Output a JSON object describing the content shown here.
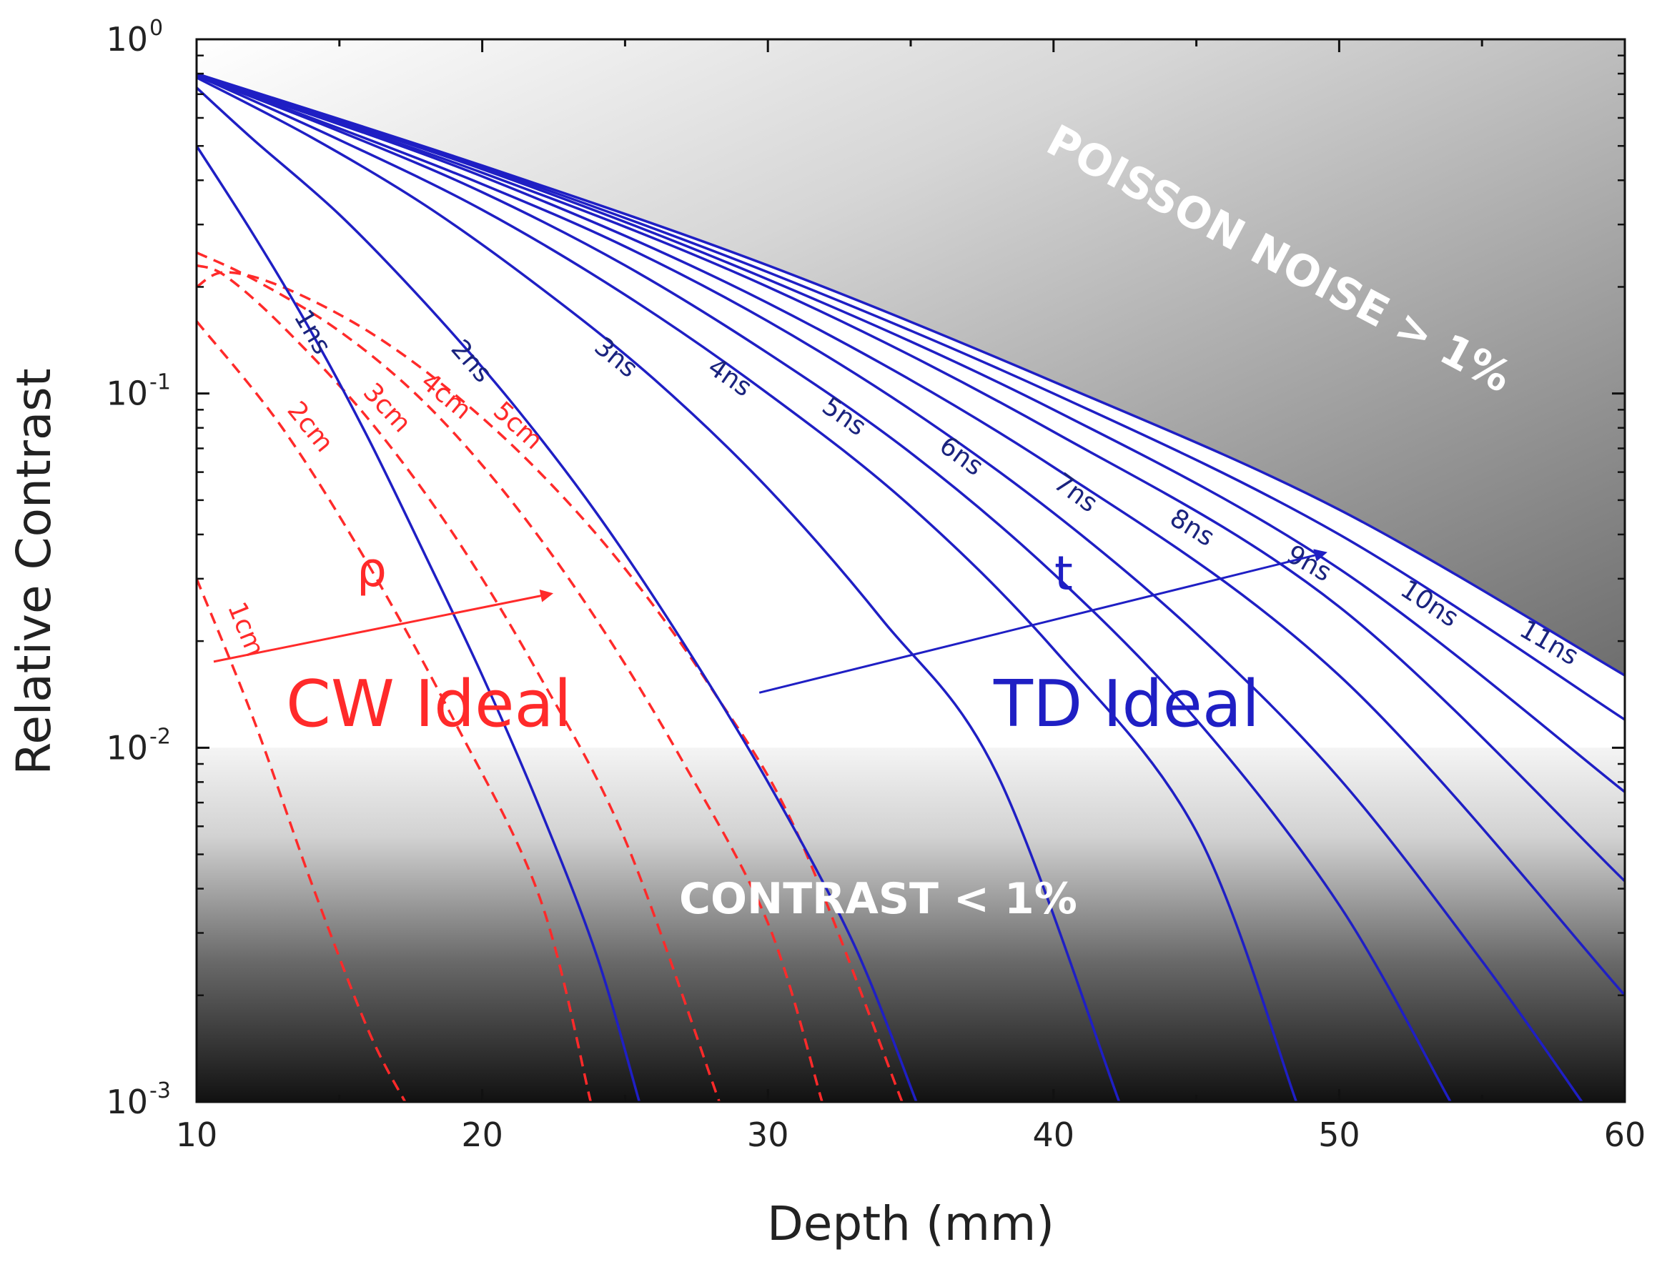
{
  "chart_data": {
    "type": "line",
    "xlabel": "Depth (mm)",
    "ylabel": "Relative Contrast",
    "xlim": [
      10,
      60
    ],
    "ylim": [
      0.001,
      1
    ],
    "yscale": "log",
    "x_ticks": [
      "10",
      "20",
      "30",
      "40",
      "50",
      "60"
    ],
    "y_ticks": [
      {
        "base": "10",
        "exp": "0",
        "value": 1
      },
      {
        "base": "10",
        "exp": "-1",
        "value": 0.1
      },
      {
        "base": "10",
        "exp": "-2",
        "value": 0.01
      },
      {
        "base": "10",
        "exp": "-3",
        "value": 0.001
      }
    ],
    "regions": {
      "poisson_label": "POISSON NOISE > 1%",
      "contrast_label": "CONTRAST < 1%",
      "contrast_threshold": 0.01
    },
    "annotations": {
      "cw_ideal": "CW Ideal",
      "td_ideal": "TD Ideal",
      "rho": "ρ",
      "t": "t"
    },
    "colors": {
      "td": "#1f1fc4",
      "td_label": "#1a237e",
      "cw": "#ff2a2a",
      "axis": "#111111"
    },
    "td_series": [
      {
        "name": "1ns",
        "label_x": 13.6,
        "points": [
          [
            10,
            0.5
          ],
          [
            12,
            0.28
          ],
          [
            14,
            0.15
          ],
          [
            16,
            0.075
          ],
          [
            18,
            0.035
          ],
          [
            20,
            0.016
          ],
          [
            22,
            0.0068
          ],
          [
            24,
            0.0026
          ],
          [
            25.5,
            0.001
          ]
        ]
      },
      {
        "name": "2ns",
        "label_x": 19.2,
        "points": [
          [
            10,
            0.73
          ],
          [
            12,
            0.52
          ],
          [
            15,
            0.32
          ],
          [
            18,
            0.18
          ],
          [
            21,
            0.095
          ],
          [
            24,
            0.046
          ],
          [
            27,
            0.02
          ],
          [
            30,
            0.008
          ],
          [
            33,
            0.0028
          ],
          [
            35.2,
            0.001
          ]
        ]
      },
      {
        "name": "3ns",
        "label_x": 24.3,
        "points": [
          [
            10,
            0.78
          ],
          [
            14,
            0.53
          ],
          [
            18,
            0.34
          ],
          [
            22,
            0.2
          ],
          [
            26,
            0.11
          ],
          [
            30,
            0.054
          ],
          [
            34,
            0.023
          ],
          [
            38,
            0.0085
          ],
          [
            42.3,
            0.001
          ]
        ]
      },
      {
        "name": "4ns",
        "label_x": 28.3,
        "points": [
          [
            10,
            0.79
          ],
          [
            15,
            0.52
          ],
          [
            20,
            0.33
          ],
          [
            25,
            0.19
          ],
          [
            30,
            0.1
          ],
          [
            35,
            0.048
          ],
          [
            40,
            0.019
          ],
          [
            45,
            0.0058
          ],
          [
            48.5,
            0.001
          ]
        ]
      },
      {
        "name": "5ns",
        "label_x": 32.3,
        "points": [
          [
            10,
            0.79
          ],
          [
            15,
            0.55
          ],
          [
            20,
            0.37
          ],
          [
            25,
            0.23
          ],
          [
            30,
            0.13
          ],
          [
            35,
            0.068
          ],
          [
            40,
            0.031
          ],
          [
            45,
            0.012
          ],
          [
            50,
            0.0036
          ],
          [
            53.9,
            0.001
          ]
        ]
      },
      {
        "name": "6ns",
        "label_x": 36.4,
        "points": [
          [
            10,
            0.79
          ],
          [
            15,
            0.56
          ],
          [
            20,
            0.39
          ],
          [
            25,
            0.26
          ],
          [
            30,
            0.16
          ],
          [
            35,
            0.09
          ],
          [
            40,
            0.046
          ],
          [
            45,
            0.021
          ],
          [
            50,
            0.0082
          ],
          [
            55,
            0.0025
          ],
          [
            58.5,
            0.001
          ]
        ]
      },
      {
        "name": "7ns",
        "label_x": 40.4,
        "points": [
          [
            10,
            0.79
          ],
          [
            20,
            0.41
          ],
          [
            30,
            0.18
          ],
          [
            40,
            0.062
          ],
          [
            50,
            0.016
          ],
          [
            60,
            0.002
          ]
        ]
      },
      {
        "name": "8ns",
        "label_x": 44.5,
        "points": [
          [
            10,
            0.79
          ],
          [
            20,
            0.42
          ],
          [
            30,
            0.2
          ],
          [
            40,
            0.078
          ],
          [
            50,
            0.025
          ],
          [
            60,
            0.0042
          ]
        ]
      },
      {
        "name": "9ns",
        "label_x": 48.6,
        "points": [
          [
            10,
            0.79
          ],
          [
            20,
            0.43
          ],
          [
            30,
            0.21
          ],
          [
            40,
            0.09
          ],
          [
            50,
            0.032
          ],
          [
            60,
            0.0075
          ]
        ]
      },
      {
        "name": "10ns",
        "label_x": 52.8,
        "points": [
          [
            10,
            0.79
          ],
          [
            20,
            0.435
          ],
          [
            30,
            0.22
          ],
          [
            40,
            0.1
          ],
          [
            50,
            0.04
          ],
          [
            60,
            0.012
          ]
        ]
      },
      {
        "name": "11ns",
        "label_x": 57.0,
        "points": [
          [
            10,
            0.8
          ],
          [
            20,
            0.44
          ],
          [
            30,
            0.23
          ],
          [
            40,
            0.108
          ],
          [
            50,
            0.047
          ],
          [
            60,
            0.016
          ]
        ]
      }
    ],
    "cw_series": [
      {
        "name": "1cm",
        "label_x": 10.7,
        "points": [
          [
            10,
            0.03
          ],
          [
            12,
            0.012
          ],
          [
            14,
            0.0042
          ],
          [
            16,
            0.0016
          ],
          [
            17.3,
            0.001
          ]
        ]
      },
      {
        "name": "2cm",
        "label_x": 13.0,
        "points": [
          [
            10,
            0.16
          ],
          [
            13,
            0.08
          ],
          [
            16,
            0.033
          ],
          [
            19,
            0.012
          ],
          [
            22,
            0.0038
          ],
          [
            23.8,
            0.001
          ]
        ]
      },
      {
        "name": "3cm",
        "label_x": 15.7,
        "points": [
          [
            10,
            0.23
          ],
          [
            11,
            0.215
          ],
          [
            13,
            0.155
          ],
          [
            16,
            0.085
          ],
          [
            19,
            0.04
          ],
          [
            22,
            0.016
          ],
          [
            25,
            0.0055
          ],
          [
            28.3,
            0.001
          ]
        ]
      },
      {
        "name": "4cm",
        "label_x": 17.8,
        "points": [
          [
            10,
            0.25
          ],
          [
            12,
            0.21
          ],
          [
            15,
            0.15
          ],
          [
            18,
            0.094
          ],
          [
            21,
            0.05
          ],
          [
            24,
            0.023
          ],
          [
            27,
            0.0092
          ],
          [
            30,
            0.0032
          ],
          [
            31.9,
            0.001
          ]
        ]
      },
      {
        "name": "5cm",
        "label_x": 20.3,
        "points": [
          [
            10,
            0.2
          ],
          [
            11,
            0.22
          ],
          [
            13,
            0.2
          ],
          [
            16,
            0.15
          ],
          [
            19,
            0.1
          ],
          [
            22,
            0.06
          ],
          [
            25,
            0.032
          ],
          [
            28,
            0.0148
          ],
          [
            31,
            0.0058
          ],
          [
            34.7,
            0.001
          ]
        ]
      }
    ],
    "arrows": {
      "rho": {
        "from": [
          10.6,
          0.0175
        ],
        "to": [
          22.4,
          0.0272
        ]
      },
      "t": {
        "from": [
          29.7,
          0.0143
        ],
        "to": [
          49.5,
          0.0355
        ]
      }
    }
  }
}
